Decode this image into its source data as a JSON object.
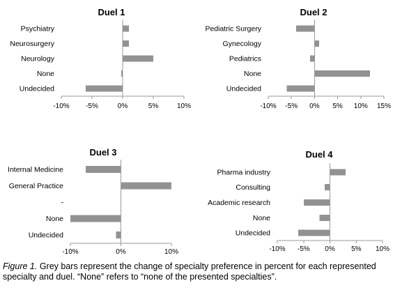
{
  "chart_data": [
    {
      "type": "bar",
      "orientation": "horizontal",
      "title": "Duel 1",
      "categories": [
        "Psychiatry",
        "Neurosurgery",
        "Neurology",
        "None",
        "Undecided"
      ],
      "values": [
        1,
        1,
        5,
        -0.2,
        -6
      ],
      "xlim": [
        -10,
        10
      ],
      "ticks": [
        -10,
        -5,
        0,
        5,
        10
      ],
      "tick_labels": [
        "-10%",
        "-5%",
        "0%",
        "5%",
        "10%"
      ],
      "color": "#929292"
    },
    {
      "type": "bar",
      "orientation": "horizontal",
      "title": "Duel 2",
      "categories": [
        "Pediatric Surgery",
        "Gynecology",
        "Pediatrics",
        "None",
        "Undecided"
      ],
      "values": [
        -4,
        1,
        -1,
        12,
        -6
      ],
      "xlim": [
        -10,
        15
      ],
      "ticks": [
        -10,
        -5,
        0,
        5,
        10,
        15
      ],
      "tick_labels": [
        "-10%",
        "-5%",
        "0%",
        "5%",
        "10%",
        "15%"
      ],
      "color": "#929292"
    },
    {
      "type": "bar",
      "orientation": "horizontal",
      "title": "Duel 3",
      "categories": [
        "Internal Medicine",
        "General Practice",
        "-",
        "None",
        "Undecided"
      ],
      "values": [
        -7,
        10,
        0,
        -10,
        -1
      ],
      "xlim": [
        -10,
        10
      ],
      "ticks": [
        -10,
        0,
        10
      ],
      "tick_labels": [
        "-10%",
        "0%",
        "10%"
      ],
      "color": "#929292"
    },
    {
      "type": "bar",
      "orientation": "horizontal",
      "title": "Duel 4",
      "categories": [
        "Pharma industry",
        "Consulting",
        "Academic research",
        "None",
        "Undecided"
      ],
      "values": [
        3,
        -1,
        -5,
        -2,
        -6
      ],
      "xlim": [
        -10,
        10
      ],
      "ticks": [
        -10,
        -5,
        0,
        5,
        10
      ],
      "tick_labels": [
        "-10%",
        "-5%",
        "0%",
        "5%",
        "10%"
      ],
      "color": "#929292"
    }
  ],
  "caption": {
    "label": "Figure 1.",
    "text": " Grey bars represent the change of specialty preference in percent for each represented specialty and duel. “None” refers to “none of the presented specialties”."
  }
}
